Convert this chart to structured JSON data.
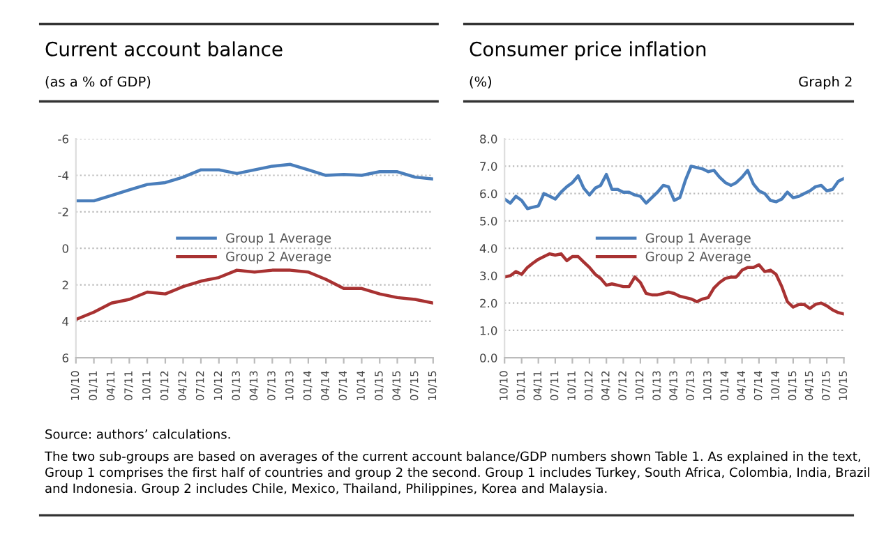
{
  "chart_data": [
    {
      "type": "line",
      "title": "Current account balance",
      "subtitle": "(as a % of GDP)",
      "x": [
        "2010-10",
        "2011-01",
        "2011-04",
        "2011-07",
        "2011-10",
        "2012-01",
        "2012-04",
        "2012-07",
        "2012-10",
        "2013-01",
        "2013-04",
        "2013-07",
        "2013-10",
        "2014-01",
        "2014-04",
        "2014-07",
        "2014-10",
        "2015-01",
        "2015-04",
        "2015-07",
        "2015-10"
      ],
      "series": [
        {
          "name": "Group 1 Average",
          "color": "#4a7ebb",
          "values": [
            -2.6,
            -2.6,
            -2.9,
            -3.2,
            -3.5,
            -3.6,
            -3.9,
            -4.3,
            -4.3,
            -4.1,
            -4.3,
            -4.5,
            -4.6,
            -4.3,
            -4.0,
            -4.05,
            -4.0,
            -4.2,
            -4.2,
            -3.9,
            -3.8
          ]
        },
        {
          "name": "Group 2 Average",
          "color": "#a83232",
          "values": [
            3.9,
            3.5,
            3.0,
            2.8,
            2.4,
            2.5,
            2.1,
            1.8,
            1.6,
            1.2,
            1.3,
            1.2,
            1.2,
            1.3,
            1.7,
            2.2,
            2.2,
            2.5,
            2.7,
            2.8,
            3.0
          ]
        }
      ],
      "xlim": [
        "2010-10",
        "2015-10"
      ],
      "xticks": [
        {
          "value": "2010-10",
          "label": "10/10"
        },
        {
          "value": "2011-01",
          "label": "01/11"
        },
        {
          "value": "2011-04",
          "label": "04/11"
        },
        {
          "value": "2011-07",
          "label": "07/11"
        },
        {
          "value": "2011-10",
          "label": "10/11"
        },
        {
          "value": "2012-01",
          "label": "01/12"
        },
        {
          "value": "2012-04",
          "label": "04/12"
        },
        {
          "value": "2012-07",
          "label": "07/12"
        },
        {
          "value": "2012-10",
          "label": "10/12"
        },
        {
          "value": "2013-01",
          "label": "01/13"
        },
        {
          "value": "2013-04",
          "label": "04/13"
        },
        {
          "value": "2013-07",
          "label": "07/13"
        },
        {
          "value": "2013-10",
          "label": "10/13"
        },
        {
          "value": "2014-01",
          "label": "01/14"
        },
        {
          "value": "2014-04",
          "label": "04/14"
        },
        {
          "value": "2014-07",
          "label": "07/14"
        },
        {
          "value": "2014-10",
          "label": "10/14"
        },
        {
          "value": "2015-01",
          "label": "01/15"
        },
        {
          "value": "2015-04",
          "label": "04/15"
        },
        {
          "value": "2015-07",
          "label": "07/15"
        },
        {
          "value": "2015-10",
          "label": "10/15"
        }
      ],
      "ylim": [
        6,
        -6
      ],
      "yticks": [
        6,
        4,
        2,
        0,
        -2,
        -4,
        -6
      ],
      "grid": "y",
      "legend": "center",
      "marker": "none",
      "line_style": "solid",
      "annotations": [
        "Source: authors’ calculations.",
        "The two sub-groups are based on averages of the current account balance/GDP numbers shown Table 1. As explained in the text, Group 1 comprises the first half of countries and group 2 the second. Group 1 includes Turkey, South Africa, Colombia, India, Brazil and Indonesia. Group 2 includes Chile, Mexico, Thailand, Philippines, Korea and Malaysia."
      ]
    },
    {
      "type": "line",
      "title": "Consumer price inflation",
      "subtitle": "(%)",
      "x": [
        "2010-10",
        "2010-11",
        "2010-12",
        "2011-01",
        "2011-02",
        "2011-03",
        "2011-04",
        "2011-05",
        "2011-06",
        "2011-07",
        "2011-08",
        "2011-09",
        "2011-10",
        "2011-11",
        "2011-12",
        "2012-01",
        "2012-02",
        "2012-03",
        "2012-04",
        "2012-05",
        "2012-06",
        "2012-07",
        "2012-08",
        "2012-09",
        "2012-10",
        "2012-11",
        "2012-12",
        "2013-01",
        "2013-02",
        "2013-03",
        "2013-04",
        "2013-05",
        "2013-06",
        "2013-07",
        "2013-08",
        "2013-09",
        "2013-10",
        "2013-11",
        "2013-12",
        "2014-01",
        "2014-02",
        "2014-03",
        "2014-04",
        "2014-05",
        "2014-06",
        "2014-07",
        "2014-08",
        "2014-09",
        "2014-10",
        "2014-11",
        "2014-12",
        "2015-01",
        "2015-02",
        "2015-03",
        "2015-04",
        "2015-05",
        "2015-06",
        "2015-07",
        "2015-08",
        "2015-09",
        "2015-10"
      ],
      "series": [
        {
          "name": "Group 1 Average",
          "color": "#4a7ebb",
          "values": [
            5.8,
            5.65,
            5.9,
            5.75,
            5.45,
            5.5,
            5.55,
            6.0,
            5.9,
            5.8,
            6.05,
            6.25,
            6.4,
            6.65,
            6.2,
            5.95,
            6.2,
            6.3,
            6.7,
            6.15,
            6.15,
            6.05,
            6.05,
            5.95,
            5.9,
            5.65,
            5.85,
            6.05,
            6.3,
            6.25,
            5.75,
            5.85,
            6.5,
            7.0,
            6.95,
            6.9,
            6.8,
            6.85,
            6.6,
            6.4,
            6.3,
            6.4,
            6.6,
            6.85,
            6.35,
            6.1,
            6.0,
            5.75,
            5.7,
            5.8,
            6.05,
            5.85,
            5.9,
            6.0,
            6.1,
            6.25,
            6.3,
            6.1,
            6.15,
            6.45,
            6.55
          ]
        },
        {
          "name": "Group 2 Average",
          "color": "#a83232",
          "values": [
            2.95,
            3.0,
            3.15,
            3.05,
            3.3,
            3.45,
            3.6,
            3.7,
            3.8,
            3.75,
            3.8,
            3.55,
            3.7,
            3.7,
            3.5,
            3.3,
            3.05,
            2.9,
            2.65,
            2.7,
            2.65,
            2.6,
            2.6,
            2.95,
            2.75,
            2.35,
            2.3,
            2.3,
            2.35,
            2.4,
            2.35,
            2.25,
            2.2,
            2.15,
            2.05,
            2.15,
            2.2,
            2.55,
            2.75,
            2.9,
            2.95,
            2.95,
            3.2,
            3.3,
            3.3,
            3.4,
            3.15,
            3.2,
            3.05,
            2.6,
            2.05,
            1.85,
            1.95,
            1.95,
            1.8,
            1.95,
            2.0,
            1.9,
            1.75,
            1.65,
            1.6
          ]
        }
      ],
      "xlim": [
        "2010-10",
        "2015-10"
      ],
      "xticks": [
        {
          "value": "2010-10",
          "label": "10/10"
        },
        {
          "value": "2011-01",
          "label": "01/11"
        },
        {
          "value": "2011-04",
          "label": "04/11"
        },
        {
          "value": "2011-07",
          "label": "07/11"
        },
        {
          "value": "2011-10",
          "label": "10/11"
        },
        {
          "value": "2012-01",
          "label": "01/12"
        },
        {
          "value": "2012-04",
          "label": "04/12"
        },
        {
          "value": "2012-07",
          "label": "07/12"
        },
        {
          "value": "2012-10",
          "label": "10/12"
        },
        {
          "value": "2013-01",
          "label": "01/13"
        },
        {
          "value": "2013-04",
          "label": "04/13"
        },
        {
          "value": "2013-07",
          "label": "07/13"
        },
        {
          "value": "2013-10",
          "label": "10/13"
        },
        {
          "value": "2014-01",
          "label": "01/14"
        },
        {
          "value": "2014-04",
          "label": "04/14"
        },
        {
          "value": "2014-07",
          "label": "07/14"
        },
        {
          "value": "2014-10",
          "label": "10/14"
        },
        {
          "value": "2015-01",
          "label": "01/15"
        },
        {
          "value": "2015-04",
          "label": "04/15"
        },
        {
          "value": "2015-07",
          "label": "07/15"
        },
        {
          "value": "2015-10",
          "label": "10/15"
        }
      ],
      "ylim": [
        0,
        8
      ],
      "yticks": [
        {
          "value": 0,
          "label": "0.0"
        },
        {
          "value": 1,
          "label": "1.0"
        },
        {
          "value": 2,
          "label": "2.0"
        },
        {
          "value": 3,
          "label": "3.0"
        },
        {
          "value": 4,
          "label": "4.0"
        },
        {
          "value": 5,
          "label": "5.0"
        },
        {
          "value": 6,
          "label": "6.0"
        },
        {
          "value": 7,
          "label": "7.0"
        },
        {
          "value": 8,
          "label": "8.0"
        }
      ],
      "grid": "y",
      "legend": "center",
      "marker": "none",
      "line_style": "solid",
      "annotations": [
        "Graph 2"
      ]
    }
  ]
}
